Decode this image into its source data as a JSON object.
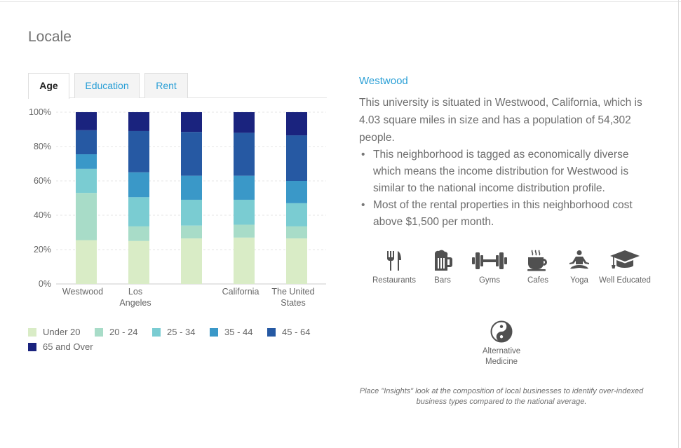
{
  "section_title": "Locale",
  "tabs": [
    {
      "label": "Age",
      "active": true
    },
    {
      "label": "Education",
      "active": false
    },
    {
      "label": "Rent",
      "active": false
    }
  ],
  "chart_data": {
    "type": "bar",
    "stacked": true,
    "categories": [
      "Westwood",
      "Los Angeles",
      "",
      "California",
      "The United States"
    ],
    "category_label_lines": [
      [
        "Westwood"
      ],
      [
        "Los",
        "Angeles"
      ],
      [
        ""
      ],
      [
        "California"
      ],
      [
        "The United",
        "States"
      ]
    ],
    "y_ticks": [
      "0%",
      "20%",
      "40%",
      "60%",
      "80%",
      "100%"
    ],
    "ylim": [
      0,
      100
    ],
    "grid": true,
    "legend_position": "bottom",
    "series": [
      {
        "name": "Under 20",
        "color": "#d9ecc6",
        "values": [
          25.5,
          25,
          26.5,
          27,
          26.5
        ]
      },
      {
        "name": "20 - 24",
        "color": "#a8dcc8",
        "values": [
          27.5,
          8.5,
          7.5,
          7.5,
          7
        ]
      },
      {
        "name": "25 - 34",
        "color": "#7accd2",
        "values": [
          14,
          17,
          15,
          14.5,
          13.5
        ]
      },
      {
        "name": "35 - 44",
        "color": "#3a98c8",
        "values": [
          8.5,
          14.5,
          14,
          14,
          13
        ]
      },
      {
        "name": "45 - 64",
        "color": "#2659a3",
        "values": [
          14,
          24,
          25.5,
          25,
          26.5
        ]
      },
      {
        "name": "65 and Over",
        "color": "#1a237e",
        "values": [
          10.5,
          11,
          11.5,
          12,
          13.5
        ]
      }
    ]
  },
  "place": {
    "title": "Westwood",
    "description": "This university is situated in Westwood, California, which is 4.03 square miles in size and has a population of 54,302 people.",
    "bullets": [
      "This neighborhood is tagged as economically diverse which means the income distribution for Westwood is similar to the national income distribution profile.",
      "Most of the rental properties in this neighborhood cost above $1,500 per month."
    ]
  },
  "insights": [
    {
      "icon": "utensils-icon",
      "label": "Restaurants"
    },
    {
      "icon": "beer-mug-icon",
      "label": "Bars"
    },
    {
      "icon": "dumbbell-icon",
      "label": "Gyms"
    },
    {
      "icon": "coffee-cup-icon",
      "label": "Cafes"
    },
    {
      "icon": "meditation-icon",
      "label": "Yoga"
    },
    {
      "icon": "graduation-cap-icon",
      "label": "Well Educated"
    },
    {
      "icon": "yin-yang-icon",
      "label": "Alternative Medicine"
    }
  ],
  "icon_color": "#505050",
  "footnote": "Place \"Insights\" look at the composition of local businesses to identify over-indexed business types compared to the national average."
}
